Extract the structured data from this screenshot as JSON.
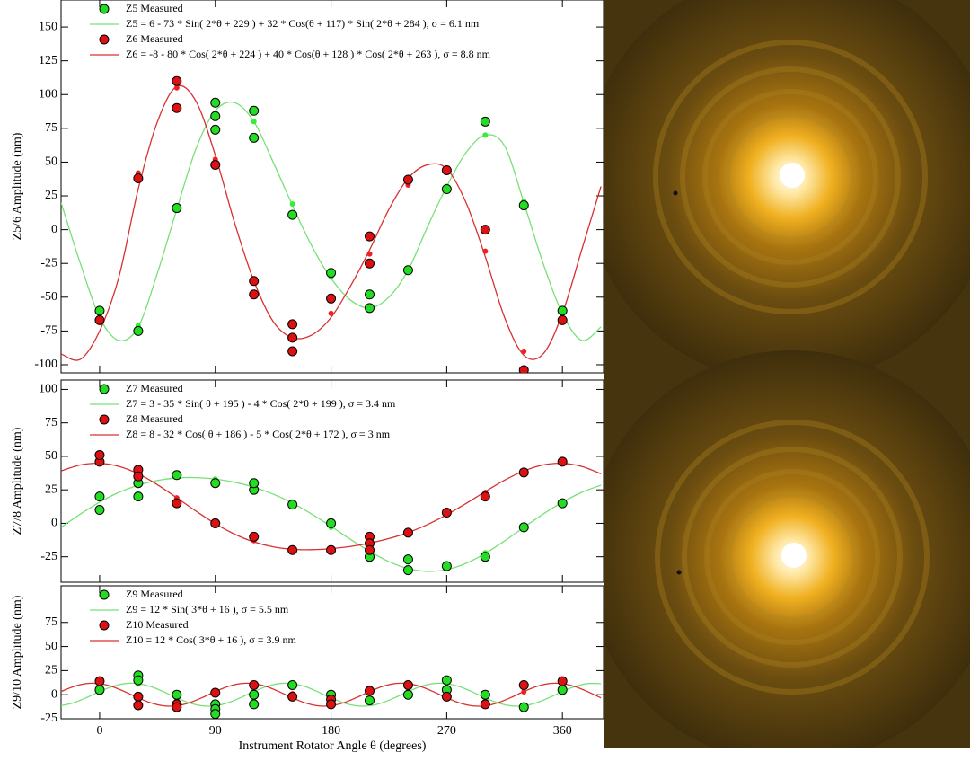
{
  "chart_data": [
    {
      "type": "scatter",
      "ylabel": "Z5/6 Amplitude (nm)",
      "xlim": [
        -30,
        392
      ],
      "ylim": [
        -106,
        170
      ],
      "xticks": [
        0,
        90,
        180,
        270,
        360
      ],
      "yticks": [
        -100,
        -75,
        -50,
        -25,
        0,
        25,
        50,
        75,
        100,
        125,
        150
      ],
      "show_xtick_labels": false,
      "series": [
        {
          "name": "Z5 Measured",
          "type": "scatter",
          "color": "#22dd22",
          "x": [
            0,
            30,
            60,
            90,
            90,
            90,
            120,
            120,
            150,
            180,
            210,
            210,
            240,
            270,
            300,
            330,
            360
          ],
          "y": [
            -60,
            -75,
            16,
            94,
            84,
            74,
            88,
            68,
            11,
            -32,
            -48,
            -58,
            -30,
            30,
            80,
            18,
            -60
          ]
        },
        {
          "name": "Z5 = 6 - 73 * Sin( 2*θ + 229 ) + 32 * Cos(θ + 117) * Sin( 2*θ + 284 ), σ = 6.1 nm",
          "type": "line",
          "color": "#77e077",
          "x": [
            -30,
            -15,
            0,
            15,
            30,
            45,
            60,
            75,
            90,
            105,
            120,
            135,
            150,
            165,
            180,
            195,
            210,
            225,
            240,
            255,
            270,
            285,
            300,
            315,
            330,
            345,
            360,
            375,
            390
          ],
          "values": [
            20,
            -25,
            -65,
            -82,
            -72,
            -32,
            15,
            60,
            88,
            94,
            80,
            50,
            18,
            -12,
            -36,
            -52,
            -58,
            -50,
            -30,
            2,
            32,
            57,
            70,
            62,
            20,
            -25,
            -62,
            -82,
            -72
          ]
        },
        {
          "name": "Z6 Measured",
          "type": "scatter",
          "color": "#dd1111",
          "x": [
            0,
            30,
            60,
            60,
            90,
            120,
            120,
            150,
            150,
            150,
            180,
            210,
            210,
            240,
            270,
            300,
            330,
            360
          ],
          "y": [
            -67,
            38,
            110,
            90,
            48,
            -38,
            -48,
            -70,
            -80,
            -90,
            -51,
            -5,
            -25,
            37,
            44,
            0,
            -104,
            -67
          ]
        },
        {
          "name": "Z6 = -8 - 80 * Cos( 2*θ + 224 ) + 40 * Cos(θ + 128 ) * Cos( 2*θ + 263 ), σ = 8.8 nm",
          "type": "line",
          "color": "#d83030",
          "x": [
            -30,
            -15,
            0,
            15,
            30,
            45,
            60,
            75,
            90,
            105,
            120,
            135,
            150,
            165,
            180,
            195,
            210,
            225,
            240,
            255,
            270,
            285,
            300,
            315,
            330,
            345,
            360,
            375,
            390
          ],
          "values": [
            -92,
            -96,
            -75,
            -35,
            30,
            80,
            106,
            95,
            55,
            5,
            -38,
            -68,
            -80,
            -78,
            -65,
            -42,
            -15,
            15,
            38,
            48,
            45,
            20,
            -20,
            -65,
            -93,
            -92,
            -62,
            -15,
            32
          ]
        },
        {
          "type": "dots",
          "color": "#33ee33",
          "x": [
            30,
            60,
            120,
            150,
            180,
            240,
            270,
            300,
            330
          ],
          "y": [
            -71,
            15,
            80,
            19,
            -35,
            -30,
            32,
            70,
            21
          ]
        },
        {
          "type": "dots",
          "color": "#ee2020",
          "x": [
            30,
            60,
            90,
            180,
            210,
            240,
            270,
            300,
            330
          ],
          "y": [
            42,
            105,
            52,
            -62,
            -18,
            33,
            45,
            -16,
            -90
          ]
        }
      ]
    },
    {
      "type": "scatter",
      "ylabel": "Z7/8 Amplitude (nm)",
      "xlim": [
        -30,
        392
      ],
      "ylim": [
        -44,
        107
      ],
      "xticks": [
        0,
        90,
        180,
        270,
        360
      ],
      "yticks": [
        -25,
        0,
        25,
        50,
        75,
        100
      ],
      "show_xtick_labels": false,
      "series": [
        {
          "name": "Z7 Measured",
          "type": "scatter",
          "color": "#22dd22",
          "x": [
            0,
            0,
            30,
            30,
            60,
            90,
            120,
            120,
            150,
            180,
            210,
            240,
            240,
            270,
            300,
            330,
            360
          ],
          "y": [
            10,
            20,
            20,
            30,
            36,
            30,
            25,
            30,
            14,
            0,
            -25,
            -27,
            -35,
            -32,
            -25,
            -3,
            15
          ]
        },
        {
          "name": "Z7 = 3 - 35 * Sin( θ + 195 ) - 4 * Cos( 2*θ + 199 ), σ = 3.4 nm",
          "type": "line",
          "color": "#77e077",
          "x": [
            -30,
            -15,
            0,
            15,
            30,
            45,
            60,
            75,
            90,
            105,
            120,
            135,
            150,
            165,
            180,
            195,
            210,
            225,
            240,
            255,
            270,
            285,
            300,
            315,
            330,
            345,
            360,
            375,
            390
          ],
          "values": [
            -3.0,
            6.9,
            15.8,
            23.1,
            28.5,
            32.0,
            33.8,
            34.1,
            33.0,
            30.7,
            27.0,
            21.8,
            15.1,
            6.9,
            -2.3,
            -11.9,
            -20.9,
            -28.6,
            -33.8,
            -35.9,
            -34.6,
            -29.9,
            -22.5,
            -13.2,
            -3.0,
            6.9,
            15.8,
            23.1,
            28.5
          ]
        },
        {
          "name": "Z8 Measured",
          "type": "scatter",
          "color": "#dd1111",
          "x": [
            0,
            0,
            30,
            30,
            60,
            90,
            120,
            150,
            180,
            210,
            210,
            210,
            240,
            270,
            300,
            330,
            360
          ],
          "y": [
            46,
            51,
            40,
            35,
            15,
            0,
            -10,
            -20,
            -20,
            -10,
            -15,
            -20,
            -7,
            8,
            20,
            38,
            46
          ]
        },
        {
          "name": "Z8 = 8 - 32 * Cos( θ + 186 ) - 5 * Cos( 2*θ + 172 ), σ = 3 nm",
          "type": "line",
          "color": "#d83030",
          "x": [
            -30,
            -15,
            0,
            15,
            30,
            45,
            60,
            75,
            90,
            105,
            120,
            135,
            150,
            165,
            180,
            195,
            210,
            225,
            240,
            255,
            270,
            285,
            300,
            315,
            330,
            345,
            360,
            375,
            390
          ],
          "values": [
            39.1,
            43.6,
            44.8,
            42.5,
            37.0,
            28.8,
            19.1,
            9.1,
            -0.3,
            -8.1,
            -13.9,
            -17.6,
            -19.4,
            -19.7,
            -18.9,
            -17.3,
            -14.8,
            -11.4,
            -6.9,
            -0.9,
            6.4,
            14.8,
            23.7,
            32.2,
            39.1,
            43.6,
            44.8,
            42.5,
            37.0
          ]
        },
        {
          "type": "dots",
          "color": "#33ee33",
          "x": [
            90,
            180,
            210,
            240,
            270,
            300
          ],
          "y": [
            33,
            -3,
            -21,
            -33,
            -30,
            -22
          ]
        },
        {
          "type": "dots",
          "color": "#ee2020",
          "x": [
            30,
            60,
            120,
            270,
            300
          ],
          "y": [
            38,
            19,
            -13,
            7,
            23
          ]
        }
      ]
    },
    {
      "type": "scatter",
      "ylabel": "Z9/10 Amplitude (nm)",
      "xlabel": "Instrument Rotator Angle θ (degrees)",
      "xlim": [
        -30,
        392
      ],
      "ylim": [
        -25,
        113
      ],
      "xticks": [
        0,
        90,
        180,
        270,
        360
      ],
      "yticks": [
        -25,
        0,
        25,
        50,
        75
      ],
      "show_xtick_labels": true,
      "series": [
        {
          "name": "Z9 Measured",
          "type": "scatter",
          "color": "#22dd22",
          "x": [
            0,
            30,
            30,
            60,
            90,
            90,
            90,
            120,
            120,
            150,
            180,
            210,
            240,
            270,
            270,
            300,
            330,
            360
          ],
          "y": [
            5,
            20,
            15,
            0,
            -10,
            -15,
            -20,
            0,
            -10,
            10,
            0,
            -6,
            0,
            15,
            5,
            0,
            -13,
            5
          ]
        },
        {
          "name": "Z9 = 12 * Sin( 3*θ + 16 ), σ = 5.5 nm",
          "type": "line",
          "color": "#77e077",
          "x": [
            -30,
            -20,
            -10,
            0,
            10,
            20,
            30,
            40,
            50,
            60,
            70,
            80,
            90,
            100,
            110,
            120,
            130,
            140,
            150,
            160,
            170,
            180,
            190,
            200,
            210,
            220,
            230,
            240,
            250,
            260,
            270,
            280,
            290,
            300,
            310,
            320,
            330,
            340,
            350,
            360,
            370,
            380,
            390
          ],
          "values": [
            -11.5,
            -8.3,
            -2.9,
            3.3,
            8.6,
            11.6,
            11.5,
            8.3,
            2.9,
            -3.3,
            -8.6,
            -11.6,
            -11.5,
            -8.3,
            -2.9,
            3.3,
            8.6,
            11.6,
            11.5,
            8.3,
            2.9,
            -3.3,
            -8.6,
            -11.6,
            -11.5,
            -8.3,
            -2.9,
            3.3,
            8.6,
            11.6,
            11.5,
            8.3,
            2.9,
            -3.3,
            -8.6,
            -11.6,
            -11.5,
            -8.3,
            -2.9,
            3.3,
            8.6,
            11.6,
            11.5
          ]
        },
        {
          "name": "Z10 Measured",
          "type": "scatter",
          "color": "#dd1111",
          "x": [
            0,
            30,
            30,
            60,
            60,
            90,
            120,
            150,
            180,
            180,
            210,
            240,
            270,
            300,
            330,
            360
          ],
          "y": [
            14,
            -2,
            -11,
            -10,
            -13,
            2,
            10,
            -2,
            -5,
            -10,
            4,
            10,
            -2,
            -10,
            10,
            14
          ]
        },
        {
          "name": "Z10 = 12 * Cos( 3*θ + 16 ), σ = 3.9 nm",
          "type": "line",
          "color": "#d83030",
          "x": [
            -30,
            -20,
            -10,
            0,
            10,
            20,
            30,
            40,
            50,
            60,
            70,
            80,
            90,
            100,
            110,
            120,
            130,
            140,
            150,
            160,
            170,
            180,
            190,
            200,
            210,
            220,
            230,
            240,
            250,
            260,
            270,
            280,
            290,
            300,
            310,
            320,
            330,
            340,
            350,
            360,
            370,
            380,
            390
          ],
          "values": [
            3.3,
            8.6,
            11.6,
            11.5,
            8.3,
            2.9,
            -3.3,
            -8.6,
            -11.6,
            -11.5,
            -8.3,
            -2.9,
            3.3,
            8.6,
            11.6,
            11.5,
            8.3,
            2.9,
            -3.3,
            -8.6,
            -11.6,
            -11.5,
            -8.3,
            -2.9,
            3.3,
            8.6,
            11.6,
            11.5,
            8.3,
            2.9,
            -3.3,
            -8.6,
            -11.6,
            -11.5,
            -8.3,
            -2.9,
            3.3,
            8.6,
            11.6,
            11.5,
            8.3,
            2.9,
            -3.3
          ]
        },
        {
          "type": "dots",
          "color": "#33ee33",
          "x": [
            0,
            30,
            60,
            120,
            180,
            240,
            360
          ],
          "y": [
            8,
            11,
            -3,
            -3,
            -6,
            3,
            6
          ]
        },
        {
          "type": "dots",
          "color": "#ee2020",
          "x": [
            0,
            60,
            150,
            270,
            330,
            360
          ],
          "y": [
            11,
            -6,
            1,
            0,
            3,
            10
          ]
        }
      ]
    }
  ]
}
